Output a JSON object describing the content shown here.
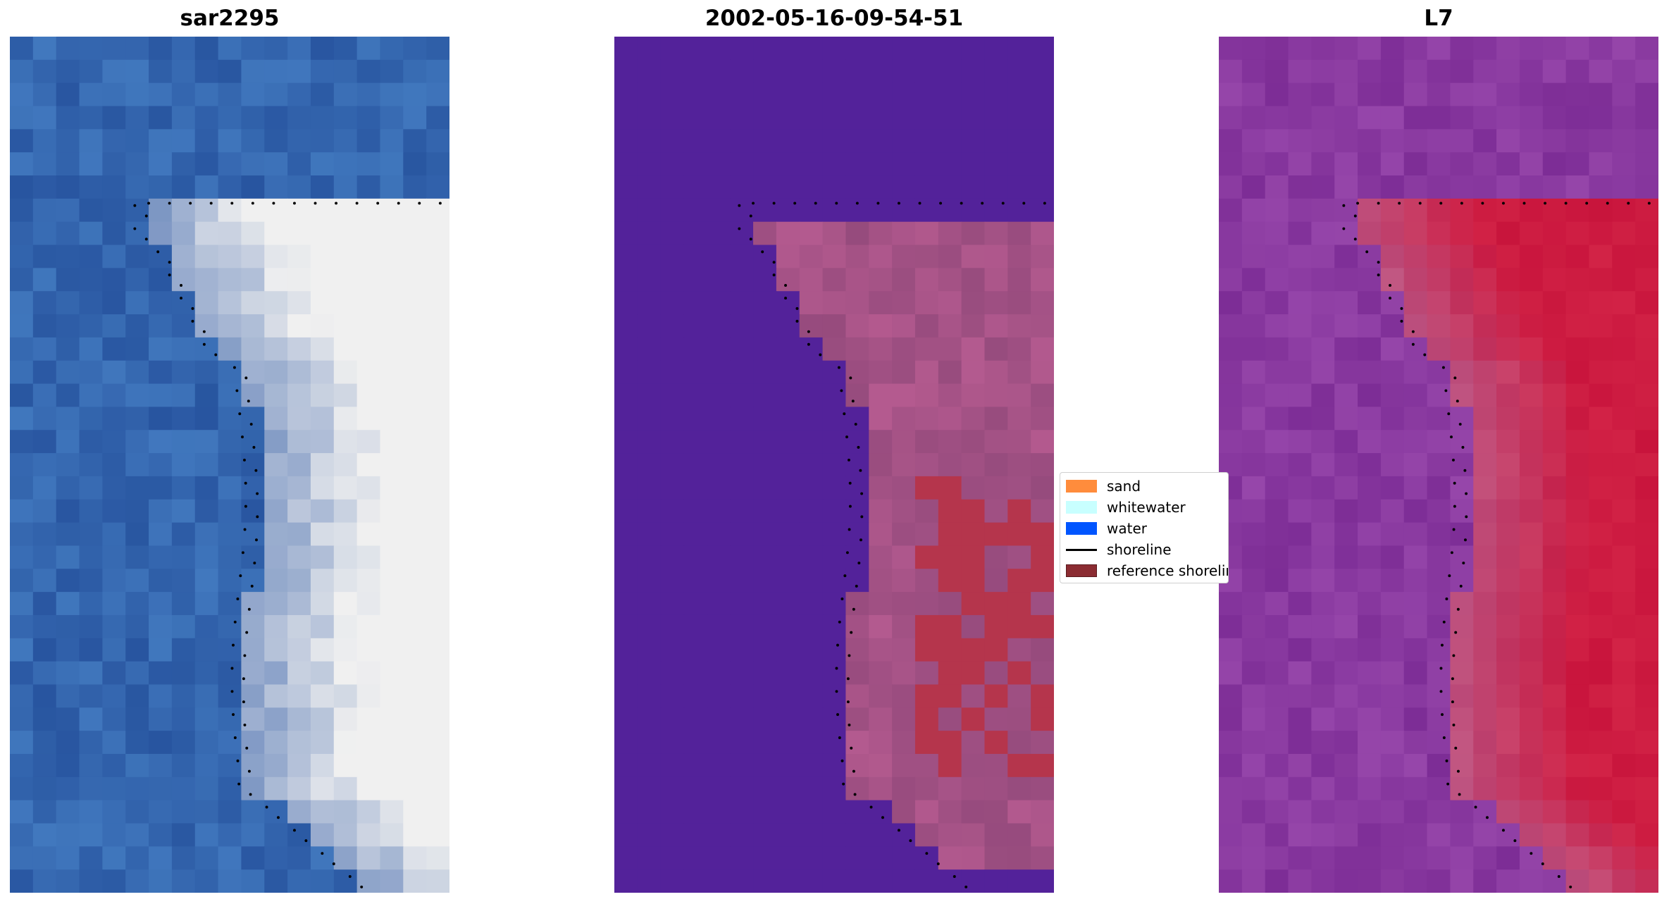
{
  "panels": [
    {
      "title": "sar2295",
      "image": "rgb-satellite-image"
    },
    {
      "title": "2002-05-16-09-54-51",
      "image": "classified-image"
    },
    {
      "title": "L7",
      "image": "false-color-image"
    }
  ],
  "legend": {
    "items": [
      {
        "label": "sand",
        "color": "#ff8c3c",
        "kind": "patch"
      },
      {
        "label": "whitewater",
        "color": "#c8ffff",
        "kind": "patch"
      },
      {
        "label": "water",
        "color": "#0055ff",
        "kind": "patch"
      },
      {
        "label": "shoreline",
        "color": "#000000",
        "kind": "line"
      },
      {
        "label": "reference shoreline",
        "color": "#8b2c32",
        "kind": "patch"
      }
    ]
  },
  "colors": {
    "water_blue": "#2d5ba8",
    "classified_background": "#53229a",
    "classified_sand": "#a4548a",
    "classified_red": "#b5354c",
    "l7_background": "#8a3296",
    "l7_land": "#c8123e"
  }
}
